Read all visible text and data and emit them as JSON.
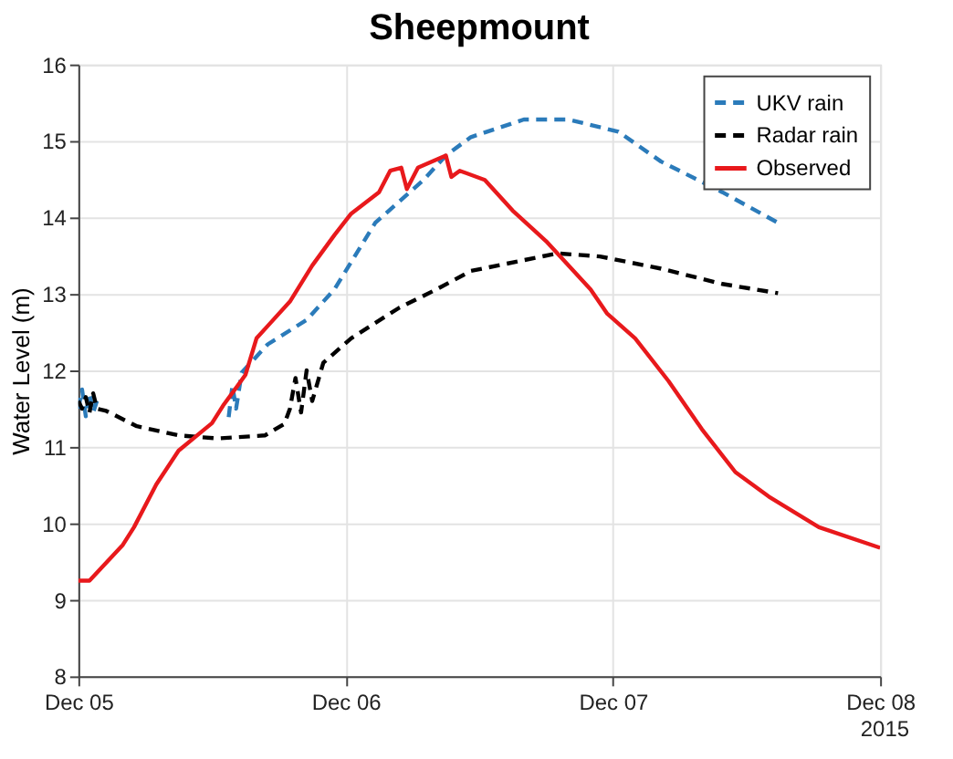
{
  "chart_data": {
    "type": "line",
    "title": "Sheepmount",
    "ylabel": "Water Level (m)",
    "xlim": [
      "2015-12-05",
      "2015-12-08"
    ],
    "xticks": [
      {
        "value": "2015-12-05",
        "label": "Dec 05"
      },
      {
        "value": "2015-12-06",
        "label": "Dec 06"
      },
      {
        "value": "2015-12-07",
        "label": "Dec 07"
      },
      {
        "value": "2015-12-08",
        "label": "Dec 08"
      }
    ],
    "ylim": [
      8,
      16
    ],
    "yticks": [
      8,
      9,
      10,
      11,
      12,
      13,
      14,
      15,
      16
    ],
    "grid": true,
    "legend": "top right",
    "annotations": [
      "2015"
    ],
    "series": [
      {
        "name": "UKV rain",
        "color": "#2b7bba",
        "line_style": "dashed",
        "x": [
          "2015-12-05T00:00",
          "2015-12-05T00:20",
          "2015-12-05T00:40",
          "2015-12-05T01:00",
          "2015-12-05T01:20",
          "2015-12-05T01:40",
          "2015-12-05T08:00",
          "2015-12-05T13:30",
          "2015-12-05T13:50",
          "2015-12-05T14:10",
          "2015-12-05T14:40",
          "2015-12-05T17:00",
          "2015-12-05T20:30",
          "2015-12-05T23:00",
          "2015-12-06T02:40",
          "2015-12-06T07:00",
          "2015-12-06T09:00",
          "2015-12-06T11:15",
          "2015-12-06T16:00",
          "2015-12-06T20:00",
          "2015-12-07T00:30",
          "2015-12-07T04:20",
          "2015-12-07T09:50",
          "2015-12-07T14:50"
        ],
        "values": [
          11.5,
          11.75,
          11.4,
          11.7,
          11.45,
          11.6,
          null,
          11.39,
          11.8,
          11.5,
          11.97,
          12.34,
          12.66,
          13.06,
          13.93,
          14.49,
          14.81,
          15.05,
          15.28,
          15.28,
          15.12,
          14.73,
          14.33,
          13.93
        ]
      },
      {
        "name": "Radar rain",
        "color": "#000000",
        "line_style": "dashed",
        "x": [
          "2015-12-05T00:00",
          "2015-12-05T00:20",
          "2015-12-05T00:40",
          "2015-12-05T01:00",
          "2015-12-05T01:20",
          "2015-12-05T01:40",
          "2015-12-05T02:30",
          "2015-12-05T05:15",
          "2015-12-05T09:00",
          "2015-12-05T12:30",
          "2015-12-05T16:45",
          "2015-12-05T18:30",
          "2015-12-05T19:00",
          "2015-12-05T19:30",
          "2015-12-05T20:00",
          "2015-12-05T20:30",
          "2015-12-05T21:00",
          "2015-12-05T22:00",
          "2015-12-06T00:30",
          "2015-12-06T04:50",
          "2015-12-06T08:10",
          "2015-12-06T11:15",
          "2015-12-06T19:00",
          "2015-12-06T22:50",
          "2015-12-07T04:20",
          "2015-12-07T09:50",
          "2015-12-07T14:50"
        ],
        "values": [
          11.6,
          11.5,
          11.65,
          11.45,
          11.7,
          11.5,
          11.47,
          11.27,
          11.15,
          11.11,
          11.15,
          11.3,
          11.5,
          11.9,
          11.45,
          12.0,
          11.6,
          12.1,
          12.42,
          12.82,
          13.06,
          13.3,
          13.53,
          13.49,
          13.33,
          13.13,
          13.01
        ]
      },
      {
        "name": "Observed",
        "color": "#e8191c",
        "line_style": "solid",
        "x": [
          "2015-12-05T00:00",
          "2015-12-05T01:00",
          "2015-12-05T04:00",
          "2015-12-05T05:00",
          "2015-12-05T07:00",
          "2015-12-05T09:00",
          "2015-12-05T11:00",
          "2015-12-05T12:00",
          "2015-12-05T13:00",
          "2015-12-05T15:00",
          "2015-12-05T16:00",
          "2015-12-05T17:00",
          "2015-12-05T19:00",
          "2015-12-05T21:00",
          "2015-12-05T23:00",
          "2015-12-06T00:30",
          "2015-12-06T03:00",
          "2015-12-06T04:00",
          "2015-12-06T05:00",
          "2015-12-06T05:30",
          "2015-12-06T06:30",
          "2015-12-06T09:00",
          "2015-12-06T09:30",
          "2015-12-06T10:15",
          "2015-12-06T12:30",
          "2015-12-06T15:00",
          "2015-12-06T18:00",
          "2015-12-06T22:00",
          "2015-12-06T23:30",
          "2015-12-07T02:00",
          "2015-12-07T05:00",
          "2015-12-07T08:00",
          "2015-12-07T11:00",
          "2015-12-07T14:00",
          "2015-12-07T18:30",
          "2015-12-08T00:00"
        ],
        "values": [
          9.25,
          9.25,
          9.72,
          9.95,
          10.51,
          10.95,
          11.19,
          11.31,
          11.54,
          11.94,
          12.42,
          12.58,
          12.9,
          13.37,
          13.77,
          14.05,
          14.33,
          14.61,
          14.65,
          14.37,
          14.65,
          14.81,
          14.53,
          14.61,
          14.49,
          14.09,
          13.69,
          13.06,
          12.74,
          12.42,
          11.86,
          11.23,
          10.67,
          10.35,
          9.95,
          9.68
        ]
      }
    ]
  }
}
